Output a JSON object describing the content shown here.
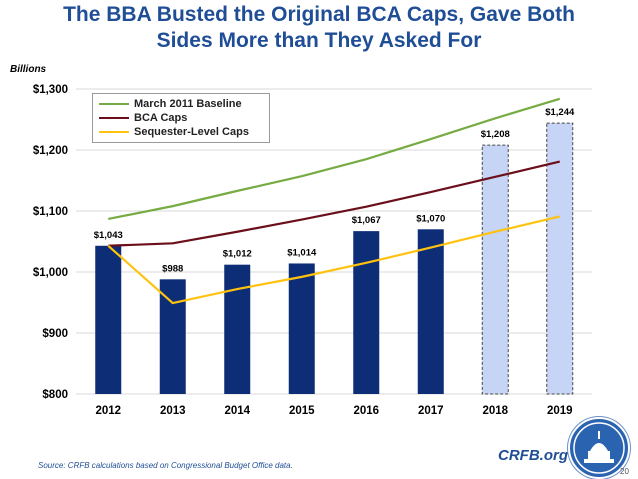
{
  "header": {
    "title_line1": "The BBA Busted the Original BCA Caps, Gave Both",
    "title_line2": "Sides More than They Asked For"
  },
  "unit_label": "Billions",
  "footer": {
    "source": "Source: CRFB calculations based on Congressional Budget Office data.",
    "brand": "CRFB.org",
    "page_number": "20"
  },
  "logo_icon": "capitol-dome-seal-icon",
  "colors": {
    "title": "#1f4e96",
    "bar_solid": "#0d2d77",
    "bar_projected_fill": "#c6d4f5",
    "baseline_line": "#77ab43",
    "bca_line": "#6b0f1a",
    "sequester_line": "#ffc20e"
  },
  "chart_data": {
    "type": "bar",
    "ylabel": "Billions",
    "ylim": [
      800,
      1300
    ],
    "yticks": [
      800,
      900,
      1000,
      1100,
      1200,
      1300
    ],
    "ytick_labels": [
      "$800",
      "$900",
      "$1,000",
      "$1,100",
      "$1,200",
      "$1,300"
    ],
    "categories": [
      "2012",
      "2013",
      "2014",
      "2015",
      "2016",
      "2017",
      "2018",
      "2019"
    ],
    "bars": {
      "values": [
        1043,
        988,
        1012,
        1014,
        1067,
        1070,
        1208,
        1244
      ],
      "labels": [
        "$1,043",
        "$988",
        "$1,012",
        "$1,014",
        "$1,067",
        "$1,070",
        "$1,208",
        "$1,244"
      ],
      "style": [
        "solid",
        "solid",
        "solid",
        "solid",
        "solid",
        "solid",
        "dashed",
        "dashed"
      ]
    },
    "series": [
      {
        "name": "March 2011 Baseline",
        "type": "line",
        "color": "#77ab43",
        "values": [
          1087,
          1108,
          1133,
          1157,
          1185,
          1218,
          1252,
          1284
        ]
      },
      {
        "name": "BCA Caps",
        "type": "line",
        "color": "#6b0f1a",
        "values": [
          1043,
          1047,
          1066,
          1086,
          1107,
          1131,
          1156,
          1181
        ]
      },
      {
        "name": "Sequester-Level Caps",
        "type": "line",
        "color": "#ffc20e",
        "values": [
          1043,
          949,
          972,
          992,
          1015,
          1040,
          1066,
          1091
        ]
      }
    ],
    "legend_position": "top-left",
    "grid": true
  }
}
